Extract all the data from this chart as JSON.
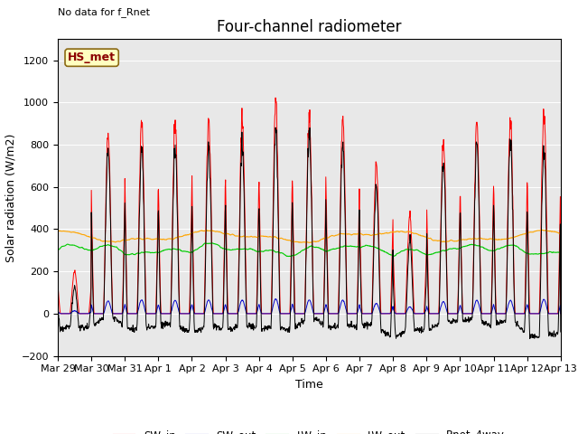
{
  "title": "Four-channel radiometer",
  "top_left_text": "No data for f_Rnet",
  "station_label": "HS_met",
  "ylabel": "Solar radiation (W/m2)",
  "xlabel": "Time",
  "ylim": [
    -200,
    1300
  ],
  "yticks": [
    -200,
    0,
    200,
    400,
    600,
    800,
    1000,
    1200
  ],
  "x_tick_labels": [
    "Mar 29",
    "Mar 30",
    "Mar 31",
    "Apr 1",
    "Apr 2",
    "Apr 3",
    "Apr 4",
    "Apr 5",
    "Apr 6",
    "Apr 7",
    "Apr 8",
    "Apr 9",
    "Apr 10",
    "Apr 11",
    "Apr 12",
    "Apr 13"
  ],
  "colors": {
    "SW_in": "#ff0000",
    "SW_out": "#0000cc",
    "LW_in": "#00cc00",
    "LW_out": "#ffa500",
    "Rnet_4way": "#000000"
  },
  "daily_peaks_sw": [
    200,
    850,
    920,
    900,
    920,
    920,
    1000,
    930,
    920,
    700,
    460,
    810,
    900,
    895,
    960
  ],
  "background_color": "#e8e8e8",
  "grid_color": "#ffffff",
  "title_fontsize": 12,
  "label_fontsize": 9,
  "tick_fontsize": 8
}
